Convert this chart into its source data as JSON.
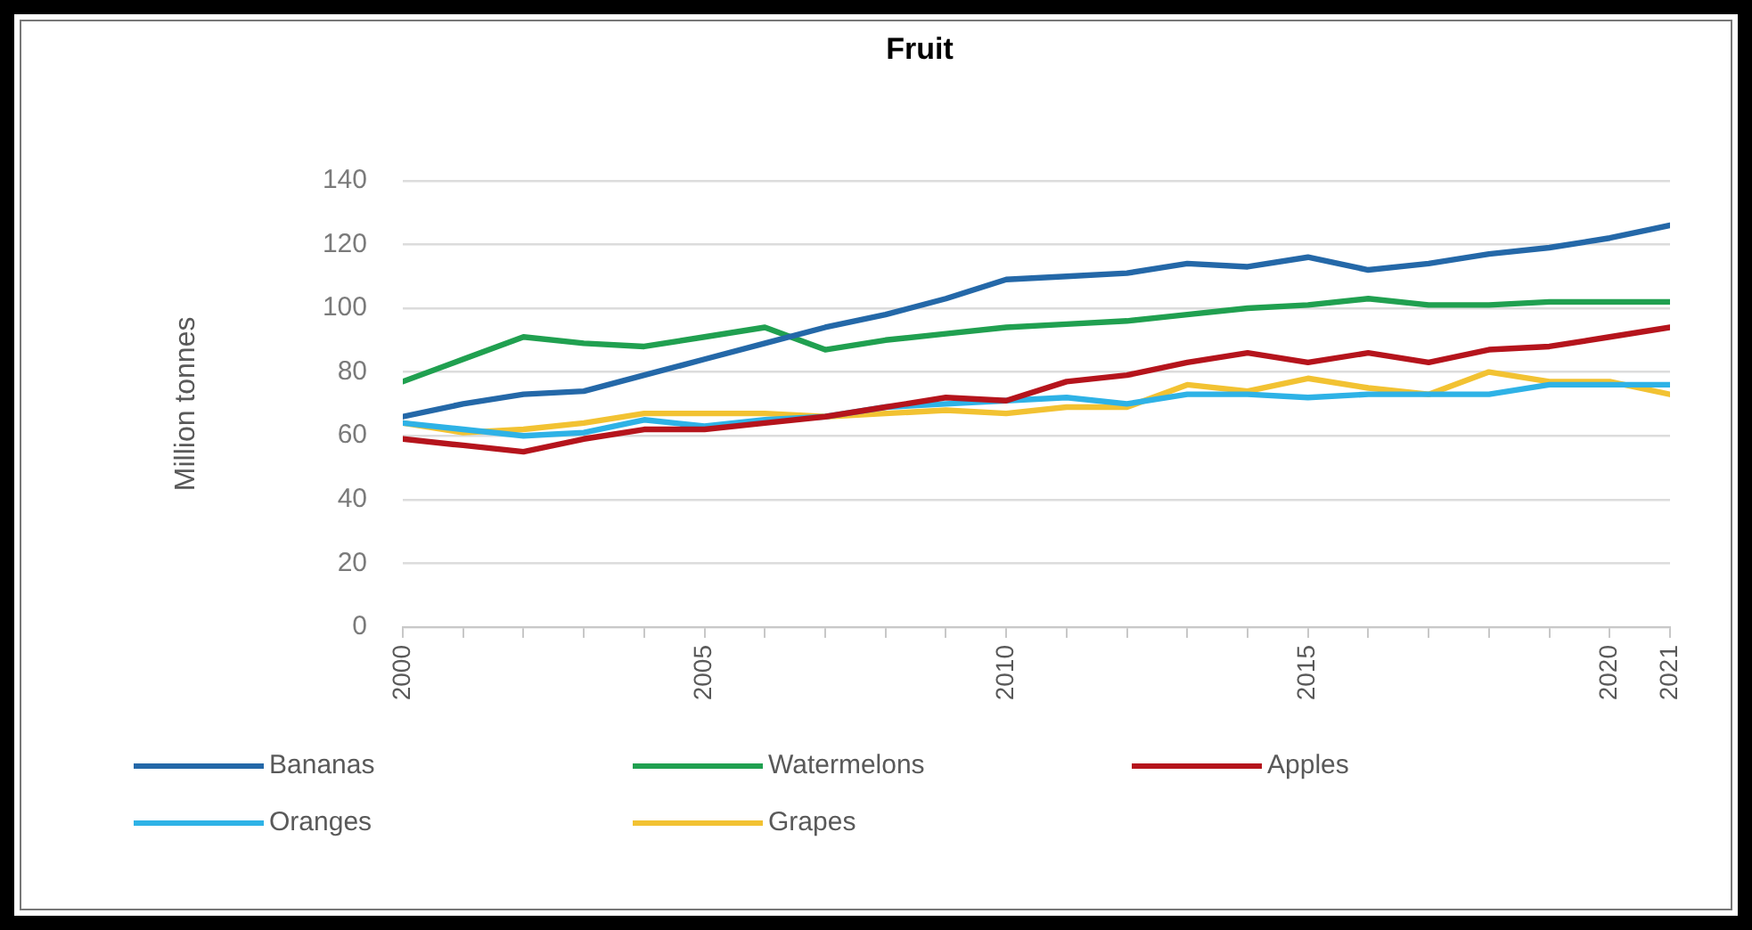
{
  "chart_data": {
    "type": "line",
    "title": "Fruit",
    "ylabel": "Million tonnes",
    "x": [
      2000,
      2001,
      2002,
      2003,
      2004,
      2005,
      2006,
      2007,
      2008,
      2009,
      2010,
      2011,
      2012,
      2013,
      2014,
      2015,
      2016,
      2017,
      2018,
      2019,
      2020,
      2021
    ],
    "xlim": [
      2000,
      2021
    ],
    "xticks": [
      2000,
      {
        "value": 2001,
        "label": null
      },
      {
        "value": 2002,
        "label": null
      },
      {
        "value": 2003,
        "label": null
      },
      {
        "value": 2004,
        "label": null
      },
      2005,
      {
        "value": 2006,
        "label": null
      },
      {
        "value": 2007,
        "label": null
      },
      {
        "value": 2008,
        "label": null
      },
      {
        "value": 2009,
        "label": null
      },
      2010,
      {
        "value": 2011,
        "label": null
      },
      {
        "value": 2012,
        "label": null
      },
      {
        "value": 2013,
        "label": null
      },
      {
        "value": 2014,
        "label": null
      },
      2015,
      {
        "value": 2016,
        "label": null
      },
      {
        "value": 2017,
        "label": null
      },
      {
        "value": 2018,
        "label": null
      },
      {
        "value": 2019,
        "label": null
      },
      2020,
      2021
    ],
    "ylim": [
      0,
      140
    ],
    "yticks": [
      0,
      20,
      40,
      60,
      80,
      100,
      120,
      140
    ],
    "grid": "y",
    "legend": "bottom",
    "marker": "none",
    "line_style": "solid",
    "series": [
      {
        "name": "Bananas",
        "color": "#2468a8",
        "values": [
          66,
          70,
          73,
          74,
          79,
          84,
          89,
          94,
          98,
          103,
          109,
          110,
          111,
          114,
          113,
          116,
          112,
          114,
          117,
          119,
          122,
          126
        ]
      },
      {
        "name": "Watermelons",
        "color": "#20a050",
        "values": [
          77,
          84,
          91,
          89,
          88,
          91,
          94,
          87,
          90,
          92,
          94,
          95,
          96,
          98,
          100,
          101,
          103,
          101,
          101,
          102,
          102,
          102
        ]
      },
      {
        "name": "Apples",
        "color": "#b5141c",
        "values": [
          59,
          57,
          55,
          59,
          62,
          62,
          64,
          66,
          69,
          72,
          71,
          77,
          79,
          83,
          86,
          83,
          86,
          83,
          87,
          88,
          91,
          94
        ]
      },
      {
        "name": "Oranges",
        "color": "#2eb2e6",
        "values": [
          64,
          62,
          60,
          61,
          65,
          63,
          65,
          66,
          69,
          70,
          71,
          72,
          70,
          73,
          73,
          72,
          73,
          73,
          73,
          76,
          76,
          76
        ]
      },
      {
        "name": "Grapes",
        "color": "#f2c232",
        "values": [
          64,
          61,
          62,
          64,
          67,
          67,
          67,
          66,
          67,
          68,
          67,
          69,
          69,
          76,
          74,
          78,
          75,
          73,
          80,
          77,
          77,
          73
        ]
      }
    ]
  }
}
